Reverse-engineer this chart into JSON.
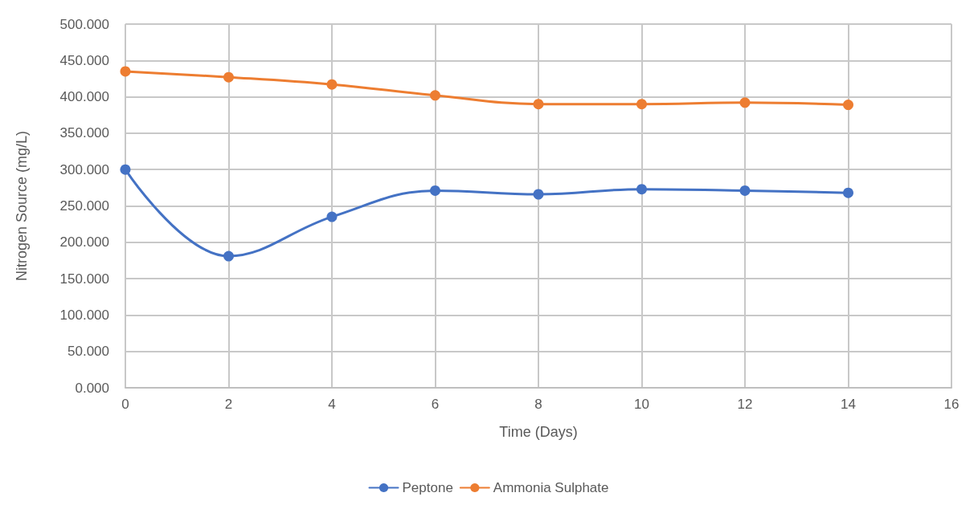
{
  "chart_data": {
    "type": "line",
    "xlabel": "Time (Days)",
    "ylabel": "Nitrogen Source (mg/L)",
    "xlim": [
      0,
      16
    ],
    "xticks": [
      0,
      2,
      4,
      6,
      8,
      10,
      12,
      14,
      16
    ],
    "ylim": [
      0,
      500
    ],
    "yticks": [
      {
        "value": 0,
        "label": "0.000"
      },
      {
        "value": 50,
        "label": "50.000"
      },
      {
        "value": 100,
        "label": "100.000"
      },
      {
        "value": 150,
        "label": "150.000"
      },
      {
        "value": 200,
        "label": "200.000"
      },
      {
        "value": 250,
        "label": "250.000"
      },
      {
        "value": 300,
        "label": "300.000"
      },
      {
        "value": 350,
        "label": "350.000"
      },
      {
        "value": 400,
        "label": "400.000"
      },
      {
        "value": 450,
        "label": "450.000"
      },
      {
        "value": 500,
        "label": "500.000"
      }
    ],
    "x": [
      0,
      2,
      4,
      6,
      8,
      10,
      12,
      14
    ],
    "series": [
      {
        "name": "Peptone",
        "color": "#4472c4",
        "values": [
          300,
          181,
          235,
          271,
          266,
          273,
          271,
          268
        ]
      },
      {
        "name": "Ammonia Sulphate",
        "color": "#ed7d31",
        "values": [
          435,
          427,
          417,
          402,
          390,
          390,
          392,
          389
        ]
      }
    ],
    "grid": true,
    "legend": "bottom",
    "marker": "circle",
    "line_style": "solid"
  }
}
